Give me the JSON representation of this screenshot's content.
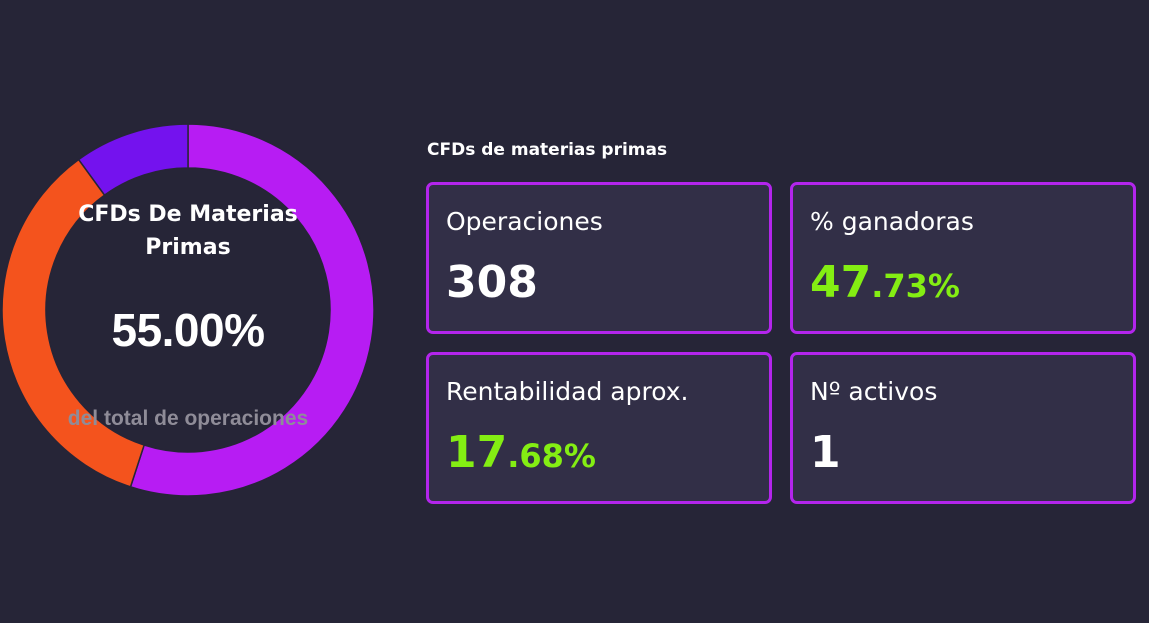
{
  "chart_data": {
    "type": "pie",
    "subtype": "donut",
    "center_title": "CFDs De Materias Primas",
    "center_value": "55.00%",
    "center_caption": "del total de operaciones",
    "slices": [
      {
        "value": 55.0,
        "color": "#b71cf3"
      },
      {
        "value": 35.0,
        "color": "#f4531d"
      },
      {
        "value": 10.0,
        "color": "#7412ee"
      }
    ]
  },
  "stats": {
    "title": "CFDs de materias primas",
    "operations": {
      "label": "Operaciones",
      "value": "308"
    },
    "win_rate": {
      "label": "% ganadoras",
      "int": "47",
      "dec": ".73%"
    },
    "profitability": {
      "label": "Rentabilidad aprox.",
      "int": "17",
      "dec": ".68%"
    },
    "assets": {
      "label": "Nº activos",
      "value": "1"
    }
  },
  "colors": {
    "background": "#262537",
    "card_background": "#322f47",
    "card_border": "#b325ec",
    "positive": "#84ee13"
  }
}
